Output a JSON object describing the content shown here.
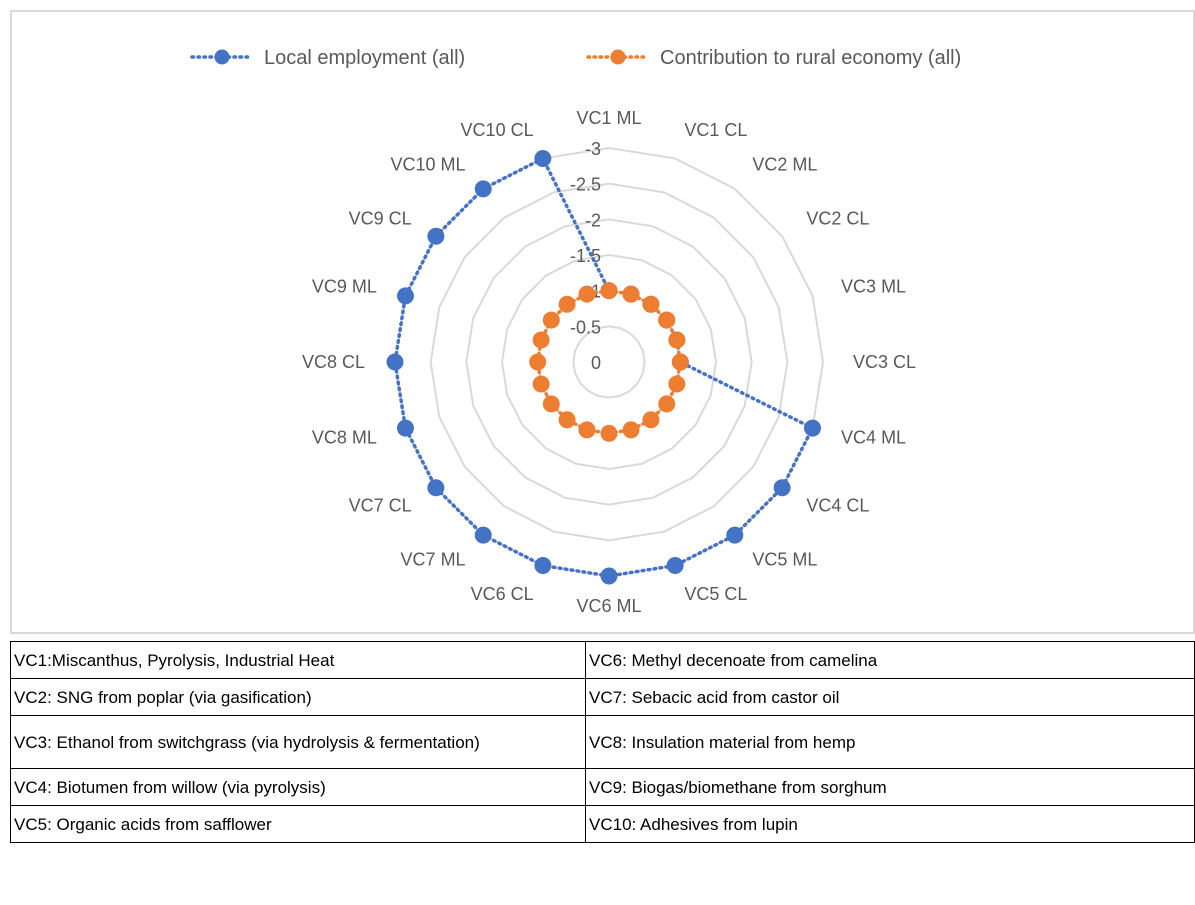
{
  "chart_data": {
    "type": "radar",
    "categories": [
      "VC1 ML",
      "VC1 CL",
      "VC2 ML",
      "VC2 CL",
      "VC3 ML",
      "VC3 CL",
      "VC4 ML",
      "VC4 CL",
      "VC5 ML",
      "VC5 CL",
      "VC6 ML",
      "VC6 CL",
      "VC7 ML",
      "VC7 CL",
      "VC8 ML",
      "VC8 CL",
      "VC9 ML",
      "VC9 CL",
      "VC10 ML",
      "VC10 CL"
    ],
    "axis": {
      "ticks": [
        "0",
        "-0.5",
        "-1",
        "-1.5",
        "-2",
        "-2.5",
        "-3"
      ],
      "range": [
        -3,
        0
      ]
    },
    "legend_position": "top",
    "grid": true,
    "series": [
      {
        "name": "Local employment (all)",
        "color": "#4472c4",
        "line": "dotted",
        "values": [
          -1,
          -1,
          -1,
          -1,
          -1,
          -1,
          -3,
          -3,
          -3,
          -3,
          -3,
          -3,
          -3,
          -3,
          -3,
          -3,
          -3,
          -3,
          -3,
          -3
        ]
      },
      {
        "name": "Contribution to rural economy (all)",
        "color": "#ed7d31",
        "line": "dotted",
        "values": [
          -1,
          -1,
          -1,
          -1,
          -1,
          -1,
          -1,
          -1,
          -1,
          -1,
          -1,
          -1,
          -1,
          -1,
          -1,
          -1,
          -1,
          -1,
          -1,
          -1
        ]
      }
    ]
  },
  "legend_table": {
    "rows": [
      {
        "left": "VC1:Miscanthus, Pyrolysis, Industrial Heat",
        "right": "VC6: Methyl decenoate from camelina"
      },
      {
        "left": "VC2: SNG from poplar (via gasification)",
        "right": "VC7: Sebacic acid from castor oil"
      },
      {
        "left": "VC3: Ethanol from switchgrass (via hydrolysis & fermentation)",
        "right": "VC8: Insulation material from hemp"
      },
      {
        "left": "VC4: Biotumen from willow (via pyrolysis)",
        "right": "VC9: Biogas/biomethane from sorghum"
      },
      {
        "left": "VC5: Organic acids from safflower",
        "right": "VC10: Adhesives from lupin"
      }
    ]
  }
}
